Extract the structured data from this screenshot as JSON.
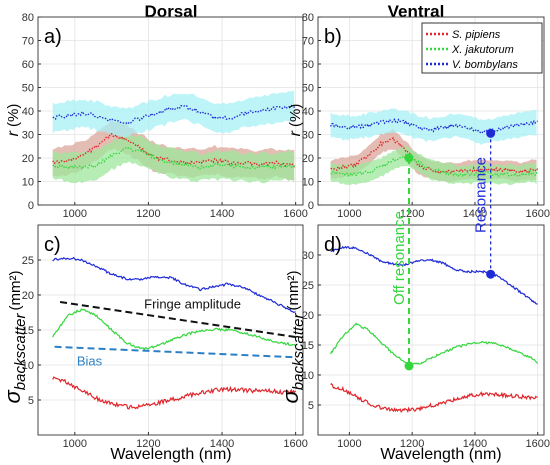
{
  "figure": {
    "col_titles": {
      "left": "Dorsal",
      "right": "Ventral"
    },
    "xlabel": "Wavelength (nm)",
    "ylabel_r_sym": "r",
    "ylabel_r_unit": "(%)",
    "ylabel_sigma_sym": "σ",
    "ylabel_sigma_sub": "backscatter",
    "ylabel_sigma_unit": "(mm²)",
    "colors": {
      "pipiens": "#e0262b",
      "jakutorum": "#35d63d",
      "bombylans": "#1f2bd6",
      "pipiens_band": "#d9a59a",
      "jakutorum_band": "#9ee79b",
      "bombylans_band": "#a6f0f5",
      "fringe": "#111111",
      "bias": "#2b7fc4",
      "off_resonance": "#35d63d",
      "resonance": "#1f2bd6"
    }
  },
  "chart_data": [
    {
      "id": "a",
      "label": "a)",
      "type": "line",
      "column": "Dorsal",
      "xlim": [
        900,
        1620
      ],
      "ylim": [
        0,
        80
      ],
      "xticks": [
        1000,
        1200,
        1400,
        1600
      ],
      "yticks": [
        0,
        10,
        20,
        30,
        40,
        50,
        60,
        70,
        80
      ],
      "band_halfwidth": {
        "pipiens": 6,
        "jakutorum": 6,
        "bombylans": 6
      },
      "series": [
        {
          "name": "S. pipiens",
          "key": "pipiens",
          "x": [
            940,
            980,
            1020,
            1060,
            1100,
            1140,
            1180,
            1220,
            1260,
            1300,
            1340,
            1380,
            1420,
            1460,
            1500,
            1540,
            1580,
            1600
          ],
          "y": [
            18,
            19,
            21,
            25,
            30,
            28,
            24,
            20,
            19,
            18,
            18,
            19,
            18,
            18,
            17,
            18,
            17,
            17
          ]
        },
        {
          "name": "X. jakutorum",
          "key": "jakutorum",
          "x": [
            940,
            980,
            1020,
            1060,
            1100,
            1140,
            1180,
            1220,
            1260,
            1300,
            1340,
            1380,
            1420,
            1460,
            1500,
            1540,
            1580,
            1600
          ],
          "y": [
            17,
            16,
            16,
            17,
            21,
            24,
            23,
            20,
            18,
            17,
            16,
            17,
            17,
            16,
            16,
            16,
            17,
            16
          ]
        },
        {
          "name": "V. bombylans",
          "key": "bombylans",
          "x": [
            940,
            980,
            1020,
            1060,
            1100,
            1140,
            1180,
            1220,
            1260,
            1300,
            1340,
            1380,
            1420,
            1460,
            1500,
            1540,
            1580,
            1600
          ],
          "y": [
            37,
            38,
            39,
            38,
            36,
            35,
            37,
            39,
            41,
            42,
            40,
            37,
            37,
            39,
            40,
            41,
            42,
            42
          ]
        }
      ]
    },
    {
      "id": "b",
      "label": "b)",
      "type": "line",
      "column": "Ventral",
      "xlim": [
        900,
        1620
      ],
      "ylim": [
        0,
        80
      ],
      "xticks": [
        1000,
        1200,
        1400,
        1600
      ],
      "yticks": [
        0,
        10,
        20,
        30,
        40,
        50,
        60,
        70,
        80
      ],
      "band_halfwidth": {
        "pipiens": 4,
        "jakutorum": 4,
        "bombylans": 5
      },
      "series": [
        {
          "name": "S. pipiens",
          "key": "pipiens",
          "x": [
            940,
            980,
            1020,
            1060,
            1100,
            1140,
            1180,
            1220,
            1260,
            1300,
            1340,
            1380,
            1420,
            1460,
            1500,
            1540,
            1580,
            1600
          ],
          "y": [
            15,
            16,
            17,
            21,
            26,
            28,
            23,
            17,
            15,
            14,
            14,
            15,
            15,
            15,
            15,
            14,
            15,
            15
          ]
        },
        {
          "name": "X. jakutorum",
          "key": "jakutorum",
          "x": [
            940,
            980,
            1020,
            1060,
            1100,
            1140,
            1180,
            1220,
            1260,
            1300,
            1340,
            1380,
            1420,
            1460,
            1500,
            1540,
            1580,
            1600
          ],
          "y": [
            14,
            13,
            13,
            14,
            16,
            19,
            21,
            18,
            15,
            14,
            13,
            13,
            14,
            13,
            13,
            13,
            14,
            13
          ]
        },
        {
          "name": "V. bombylans",
          "key": "bombylans",
          "x": [
            940,
            980,
            1020,
            1060,
            1100,
            1140,
            1180,
            1220,
            1260,
            1300,
            1340,
            1380,
            1420,
            1460,
            1500,
            1540,
            1580,
            1600
          ],
          "y": [
            34,
            33,
            33,
            34,
            35,
            36,
            35,
            33,
            32,
            33,
            34,
            33,
            31,
            32,
            33,
            34,
            35,
            35
          ]
        }
      ],
      "markers": [
        {
          "x": 1190,
          "y": 20,
          "key": "jakutorum"
        },
        {
          "x": 1450,
          "y": 30.5,
          "key": "bombylans"
        }
      ],
      "legend": {
        "placement": "top-right"
      }
    },
    {
      "id": "c",
      "label": "c)",
      "type": "line",
      "column": "Dorsal",
      "xlim": [
        900,
        1620
      ],
      "ylim": [
        0,
        30
      ],
      "xticks": [
        1000,
        1200,
        1400,
        1600
      ],
      "yticks": [
        5,
        10,
        15,
        20,
        25
      ],
      "series": [
        {
          "key": "bombylans",
          "x": [
            940,
            980,
            1020,
            1060,
            1100,
            1140,
            1180,
            1220,
            1260,
            1300,
            1340,
            1380,
            1420,
            1460,
            1500,
            1540,
            1580,
            1600
          ],
          "y": [
            25,
            25.3,
            25,
            24,
            23,
            22.3,
            22.2,
            22.6,
            22.5,
            21.5,
            20.8,
            21.2,
            21.6,
            21,
            20,
            19,
            18,
            17.5
          ]
        },
        {
          "key": "jakutorum",
          "x": [
            940,
            980,
            1020,
            1060,
            1100,
            1140,
            1180,
            1220,
            1260,
            1300,
            1340,
            1380,
            1420,
            1460,
            1500,
            1540,
            1580,
            1600
          ],
          "y": [
            14,
            17,
            18,
            17,
            15,
            13.2,
            12.3,
            12.6,
            13.5,
            14.3,
            14.9,
            15.1,
            15,
            14.6,
            14,
            13.4,
            13,
            12.8
          ]
        },
        {
          "key": "pipiens",
          "x": [
            940,
            980,
            1020,
            1060,
            1100,
            1140,
            1180,
            1220,
            1260,
            1300,
            1340,
            1380,
            1420,
            1460,
            1500,
            1540,
            1580,
            1600
          ],
          "y": [
            8,
            7.5,
            6.3,
            5.2,
            4.5,
            4,
            4.1,
            4.5,
            5,
            5.5,
            6,
            6.4,
            6.5,
            6.4,
            6.3,
            6.2,
            6.1,
            6.2
          ]
        }
      ],
      "lines": [
        {
          "key": "fringe",
          "x": [
            960,
            1600
          ],
          "y": [
            19,
            14
          ]
        },
        {
          "key": "bias",
          "x": [
            945,
            1600
          ],
          "y": [
            12.6,
            11.1
          ]
        }
      ],
      "annotations": {
        "fringe": "Fringe amplitude",
        "bias": "Bias"
      }
    },
    {
      "id": "d",
      "label": "d)",
      "type": "line",
      "column": "Ventral",
      "xlim": [
        900,
        1620
      ],
      "ylim": [
        0,
        35
      ],
      "xticks": [
        1000,
        1200,
        1400,
        1600
      ],
      "yticks": [
        5,
        10,
        15,
        20,
        25,
        30
      ],
      "series": [
        {
          "key": "bombylans",
          "x": [
            940,
            980,
            1020,
            1060,
            1100,
            1140,
            1180,
            1220,
            1260,
            1300,
            1340,
            1380,
            1420,
            1460,
            1500,
            1540,
            1580,
            1600
          ],
          "y": [
            30.5,
            31.3,
            31.2,
            30.2,
            29,
            28.5,
            28.4,
            29,
            29.2,
            28.6,
            27.5,
            27.2,
            27.3,
            26.8,
            25.5,
            24,
            22.5,
            21.8
          ]
        },
        {
          "key": "jakutorum",
          "x": [
            940,
            980,
            1020,
            1060,
            1100,
            1140,
            1180,
            1220,
            1260,
            1300,
            1340,
            1380,
            1420,
            1460,
            1500,
            1540,
            1580,
            1600
          ],
          "y": [
            13.5,
            16.5,
            18.5,
            17.5,
            15.5,
            13.5,
            12,
            11.8,
            12.8,
            13.8,
            14.6,
            15.2,
            15.5,
            15.3,
            14.7,
            13.8,
            12.8,
            12
          ]
        },
        {
          "key": "pipiens",
          "x": [
            940,
            980,
            1020,
            1060,
            1100,
            1140,
            1180,
            1220,
            1260,
            1300,
            1340,
            1380,
            1420,
            1460,
            1500,
            1540,
            1580,
            1600
          ],
          "y": [
            8.3,
            7.6,
            6.5,
            5.3,
            4.6,
            4.2,
            4.1,
            4.4,
            4.9,
            5.4,
            6,
            6.5,
            6.8,
            6.7,
            6.6,
            6.4,
            6.2,
            6.3
          ]
        }
      ],
      "markers": [
        {
          "x": 1190,
          "y": 11.5,
          "key": "jakutorum"
        },
        {
          "x": 1450,
          "y": 26.8,
          "key": "bombylans"
        }
      ],
      "annotations": {
        "off_resonance": "Off resonance",
        "resonance": "Resonance"
      }
    }
  ]
}
